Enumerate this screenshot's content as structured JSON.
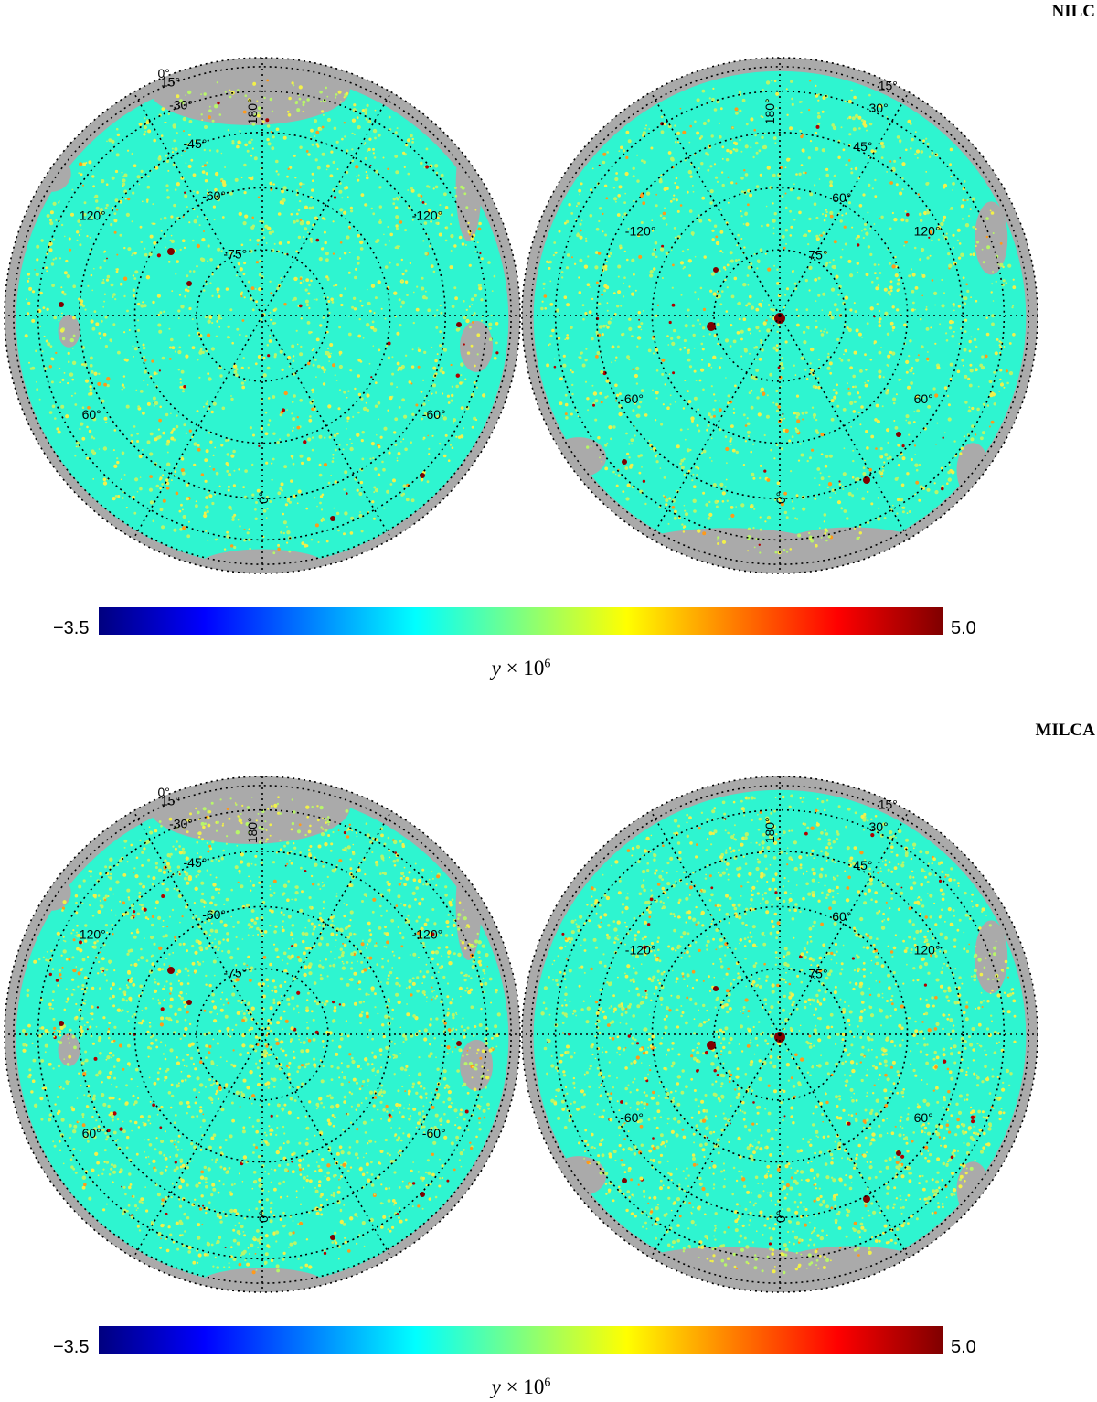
{
  "colors": {
    "mask": "#aaaaaa",
    "field": "#2ef5d0",
    "grid": "#000000"
  },
  "colorbar": {
    "min_label": "−3.5",
    "max_label": "5.0",
    "var": "y",
    "times": " × 10",
    "exp": "6",
    "stops": [
      "#00007f",
      "#0000ff",
      "#007fff",
      "#00ffff",
      "#7fff7f",
      "#ffff00",
      "#ff7f00",
      "#ff0000",
      "#7f0000"
    ]
  },
  "grid_labels": {
    "lat": [
      "0°",
      "15°",
      "-30°",
      "-45°",
      "-60°",
      "-75°"
    ],
    "lat_north": [
      "15°",
      "30°",
      "45°",
      "60°",
      "75°"
    ],
    "lon_left": [
      "180°",
      "120°",
      "-120°",
      "60°",
      "-60°",
      "0°"
    ],
    "lon_right": [
      "180°",
      "-120°",
      "120°",
      "-60°",
      "60°",
      "0°"
    ]
  },
  "panels": [
    {
      "title": "NILC"
    },
    {
      "title": "MILCA"
    }
  ]
}
